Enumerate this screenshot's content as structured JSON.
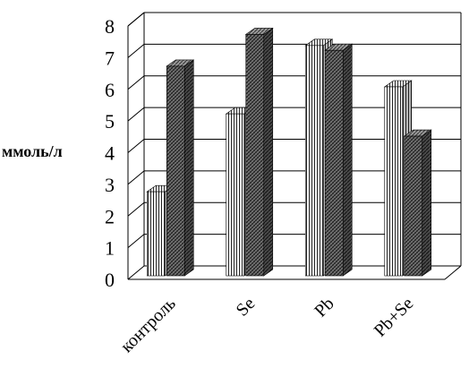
{
  "chart_data": {
    "type": "bar",
    "title": "",
    "xlabel": "",
    "ylabel": "ммоль/л",
    "ylim": [
      0,
      8
    ],
    "yticks": [
      "0",
      "1",
      "2",
      "3",
      "4",
      "5",
      "6",
      "7",
      "8"
    ],
    "categories": [
      "контроль",
      "Se",
      "Pb",
      "Pb+Se"
    ],
    "grid": true,
    "series": [
      {
        "values": [
          2.7,
          5.15,
          7.3,
          6.0
        ],
        "pattern": "vertical-stripes",
        "color": "#ffffff"
      },
      {
        "values": [
          6.65,
          7.65,
          7.15,
          4.45
        ],
        "pattern": "dark-hatch",
        "color": "#555555"
      }
    ]
  }
}
